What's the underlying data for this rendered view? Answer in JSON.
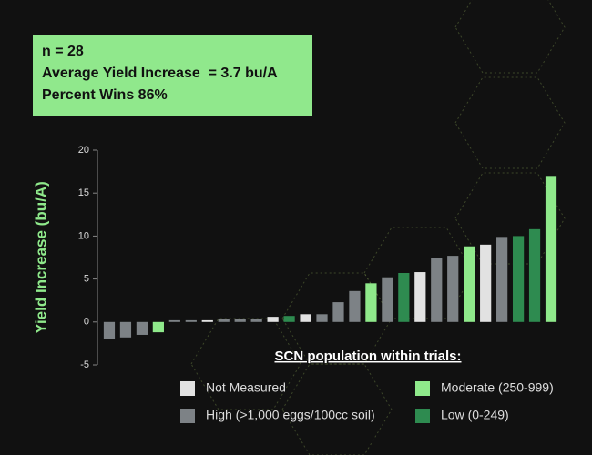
{
  "chart_data": {
    "type": "bar",
    "info_lines": [
      "n = 28",
      "Average Yield Increase  = 3.7 bu/A",
      "Percent Wins 86%"
    ],
    "y_label": "Yield Increase (bu/A)",
    "legend_title": "SCN population within trials:",
    "ylim": [
      -5,
      20
    ],
    "yticks": [
      -5,
      0,
      5,
      10,
      15,
      20
    ],
    "series": [
      {
        "name": "Not Measured",
        "color": "#e2e2e2",
        "values": [
          null,
          null,
          null,
          null,
          null,
          null,
          0.2,
          null,
          null,
          null,
          0.6,
          null,
          0.9,
          null,
          null,
          null,
          null,
          null,
          null,
          5.8,
          null,
          null,
          null,
          9.0,
          null,
          null,
          null,
          null
        ]
      },
      {
        "name": "High (>1,000 eggs/100cc soil)",
        "color": "#7d8286",
        "values": [
          -2.0,
          -1.8,
          -1.5,
          null,
          0.2,
          0.2,
          null,
          0.3,
          0.3,
          0.3,
          null,
          null,
          null,
          0.9,
          2.3,
          3.6,
          null,
          5.2,
          null,
          null,
          7.4,
          7.7,
          null,
          null,
          9.9,
          null,
          null,
          null
        ]
      },
      {
        "name": "Moderate (250-999)",
        "color": "#8fe98b",
        "values": [
          null,
          null,
          null,
          -1.2,
          null,
          null,
          null,
          null,
          null,
          null,
          null,
          null,
          null,
          null,
          null,
          null,
          4.5,
          null,
          null,
          null,
          null,
          null,
          8.8,
          null,
          null,
          null,
          null,
          17.0
        ]
      },
      {
        "name": "Low (0-249)",
        "color": "#2e8b50",
        "values": [
          null,
          null,
          null,
          null,
          null,
          null,
          null,
          null,
          null,
          null,
          null,
          0.7,
          null,
          null,
          null,
          null,
          null,
          null,
          5.7,
          null,
          null,
          null,
          null,
          null,
          null,
          10.0,
          10.8,
          null
        ]
      }
    ]
  }
}
